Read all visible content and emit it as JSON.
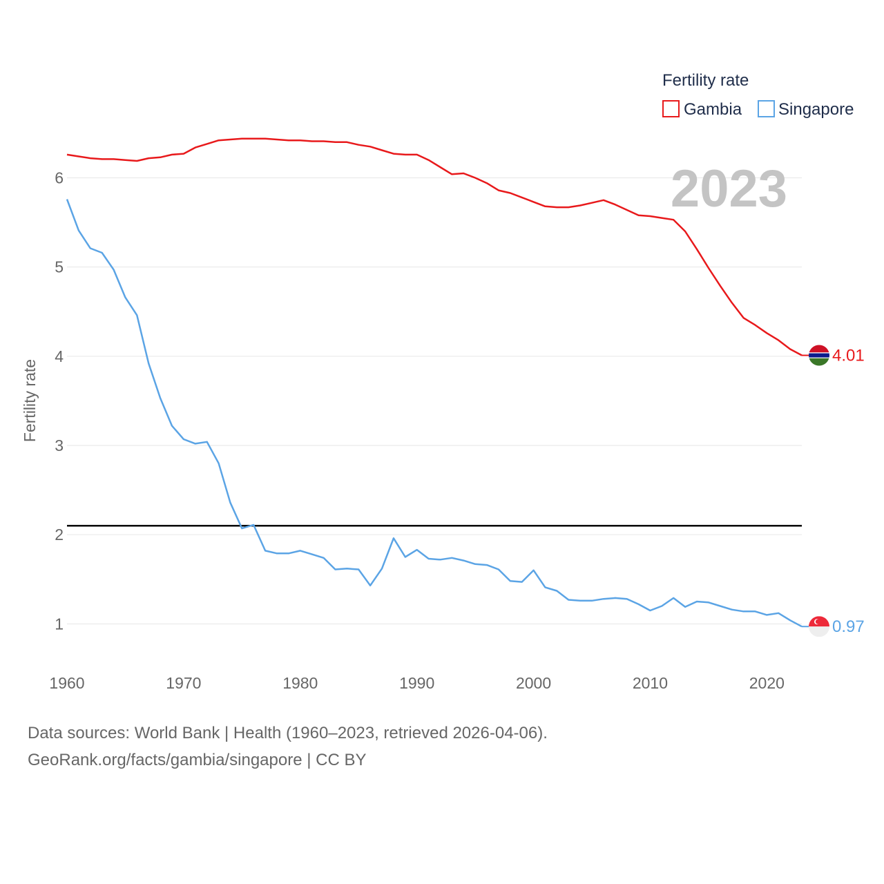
{
  "chart_data": {
    "type": "line",
    "legend_title": "Fertility rate",
    "ylabel": "Fertility rate",
    "year_label": "2023",
    "x": [
      1960,
      1961,
      1962,
      1963,
      1964,
      1965,
      1966,
      1967,
      1968,
      1969,
      1970,
      1971,
      1972,
      1973,
      1974,
      1975,
      1976,
      1977,
      1978,
      1979,
      1980,
      1981,
      1982,
      1983,
      1984,
      1985,
      1986,
      1987,
      1988,
      1989,
      1990,
      1991,
      1992,
      1993,
      1994,
      1995,
      1996,
      1997,
      1998,
      1999,
      2000,
      2001,
      2002,
      2003,
      2004,
      2005,
      2006,
      2007,
      2008,
      2009,
      2010,
      2011,
      2012,
      2013,
      2014,
      2015,
      2016,
      2017,
      2018,
      2019,
      2020,
      2021,
      2022,
      2023
    ],
    "series": [
      {
        "name": "Gambia",
        "color": "#e8191b",
        "end_label": "4.01",
        "values": [
          6.26,
          6.24,
          6.22,
          6.21,
          6.21,
          6.2,
          6.19,
          6.22,
          6.23,
          6.26,
          6.27,
          6.34,
          6.38,
          6.42,
          6.43,
          6.44,
          6.44,
          6.44,
          6.43,
          6.42,
          6.42,
          6.41,
          6.41,
          6.4,
          6.4,
          6.37,
          6.35,
          6.31,
          6.27,
          6.26,
          6.26,
          6.2,
          6.12,
          6.04,
          6.05,
          6.0,
          5.94,
          5.86,
          5.83,
          5.78,
          5.73,
          5.68,
          5.67,
          5.67,
          5.69,
          5.72,
          5.75,
          5.7,
          5.64,
          5.58,
          5.57,
          5.55,
          5.53,
          5.4,
          5.2,
          4.99,
          4.79,
          4.6,
          4.43,
          4.35,
          4.26,
          4.18,
          4.08,
          4.01
        ]
      },
      {
        "name": "Singapore",
        "color": "#5ba4e5",
        "end_label": "0.97",
        "values": [
          5.76,
          5.41,
          5.21,
          5.16,
          4.97,
          4.66,
          4.46,
          3.92,
          3.53,
          3.22,
          3.07,
          3.02,
          3.04,
          2.8,
          2.36,
          2.07,
          2.11,
          1.82,
          1.79,
          1.79,
          1.82,
          1.78,
          1.74,
          1.61,
          1.62,
          1.61,
          1.43,
          1.62,
          1.96,
          1.75,
          1.83,
          1.73,
          1.72,
          1.74,
          1.71,
          1.67,
          1.66,
          1.61,
          1.48,
          1.47,
          1.6,
          1.41,
          1.37,
          1.27,
          1.26,
          1.26,
          1.28,
          1.29,
          1.28,
          1.22,
          1.15,
          1.2,
          1.29,
          1.19,
          1.25,
          1.24,
          1.2,
          1.16,
          1.14,
          1.14,
          1.1,
          1.12,
          1.04,
          0.97
        ]
      }
    ],
    "reference_line": 2.1,
    "xlim": [
      1960,
      2023
    ],
    "ylim": [
      0.6,
      6.6
    ],
    "yticks": [
      1,
      2,
      3,
      4,
      5,
      6
    ],
    "xticks": [
      1960,
      1970,
      1980,
      1990,
      2000,
      2010,
      2020
    ],
    "grid": true,
    "legend_position": "top-right"
  },
  "source": {
    "line1": "Data sources: World Bank | Health (1960–2023, retrieved 2026-04-06).",
    "line2": "GeoRank.org/facts/gambia/singapore | CC BY"
  },
  "flags": {
    "gambia": [
      "#ce1126",
      "#0c1c8c",
      "#3a7728",
      "#ffffff"
    ],
    "singapore": [
      "#ed2939",
      "#ffffff"
    ]
  }
}
